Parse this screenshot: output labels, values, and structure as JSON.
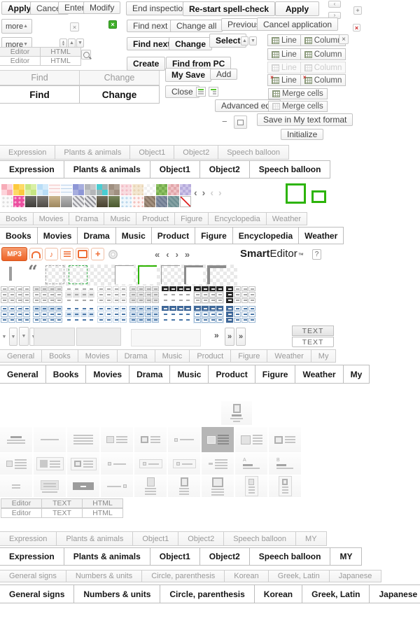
{
  "buttons": {
    "apply": "Apply",
    "cancel": "Cancel",
    "enter": "Enter",
    "modify": "Modify",
    "more": "more",
    "end_inspection": "End inspection",
    "restart_spell_check": "Re-start spell-check",
    "apply2": "Apply",
    "find_next": "Find next",
    "change_all": "Change all",
    "previous": "Previous",
    "cancel_application": "Cancel application",
    "find_next_bold": "Find next",
    "change_bold": "Change",
    "select": "Select",
    "create": "Create",
    "find_from_pc": "Find from PC",
    "my_save": "My Save",
    "add": "Add",
    "close": "Close",
    "advanced_edit": "Advanced edit",
    "merge_cells": "Merge cells",
    "merge_cells_disabled": "Merge cells",
    "save_my_text_format": "Save in My text format",
    "initialize": "Initialize",
    "line": "Line",
    "column": "Column",
    "text_upper": "TEXT",
    "minus": "−"
  },
  "tabs": {
    "editor_html": [
      "Editor",
      "HTML"
    ],
    "find_change": [
      "Find",
      "Change"
    ],
    "editor_text_html": [
      "Editor",
      "TEXT",
      "HTML"
    ],
    "groups": [
      {
        "id": "sticker",
        "items": [
          "Expression",
          "Plants & animals",
          "Object1",
          "Object2",
          "Speech balloon"
        ]
      },
      {
        "id": "theme",
        "items": [
          "Books",
          "Movies",
          "Drama",
          "Music",
          "Product",
          "Figure",
          "Encyclopedia",
          "Weather"
        ]
      },
      {
        "id": "photo",
        "items": [
          "General",
          "Books",
          "Movies",
          "Drama",
          "Music",
          "Product",
          "Figure",
          "Weather",
          "My"
        ]
      },
      {
        "id": "sticker-my",
        "items": [
          "Expression",
          "Plants & animals",
          "Object1",
          "Object2",
          "Speech balloon",
          "MY"
        ]
      },
      {
        "id": "signs",
        "items": [
          "General signs",
          "Numbers & units",
          "Circle, parenthesis",
          "Korean",
          "Greek, Latin",
          "Japanese"
        ]
      }
    ]
  },
  "brand": {
    "bold": "Smart",
    "regular": "Editor",
    "tm": "™",
    "help": "?"
  },
  "mp3": {
    "label": "MP3",
    "icons": [
      "headphone-icon",
      "music-note-icon",
      "playlist-icon",
      "radio-icon",
      "plus-icon",
      "disc-icon"
    ]
  },
  "arrows": {
    "prev": "‹",
    "next": "›",
    "first": "«",
    "last": "»",
    "up": "▲",
    "down": "▼",
    "plus": "+",
    "close": "×"
  },
  "palette": {
    "row1": [
      "quad:#f7acb8:#fdd3da",
      "quad:#fcc93f:#fdda66",
      "quad:#c6e683:#d9efa5",
      "quad:#b8ddf7:#d3eafa",
      "lines:#fdf5f5:#f3c6c6",
      "lines:#f5f9fd:#bcd2ea",
      "quad:#8e97d6:#a7aede",
      "quad:#b4b6b9:#c6c8ca",
      "quad:#49cdd2:#9fb3b4",
      "quad:#a09081:#b0a294",
      "dots:#f8dce0:#f3bcc6",
      "dots:#f3e6d0:#e8d4b4",
      "check:#f0f0f0:#ffffff",
      "check:#76ad4e:#8fc164",
      "check:#e2a6aa:#eec3c6",
      "check:#b6abdc:#cdc5e8"
    ],
    "row2": [
      "dots:#fafafa:#dedede",
      "dots:#ec4fa0:#f7b0d3",
      "photo:#4c4a45",
      "photo:#5f5b55",
      "photo:#bfa474",
      "photo:#a8a8a8",
      "diag:#e8e8ea:#9a9aa0",
      "diag:#e4e4e6:#8f8f95",
      "photo:#564f39",
      "photo:#5a6b38",
      "dots:#eff7fc:#bcd9ec",
      "dots:#fdf4f3:#f3c0bc",
      "diag:#a3907f:#8a7766",
      "diag:#8590a3:#6f7b91",
      "diag:#84a1a3:#6d8f92",
      "slash"
    ]
  },
  "border_tiles": [
    "dashed-gray",
    "dashed-green",
    "transparent",
    "corner-gray",
    "corner-green",
    "corner-gray-transparent",
    "corner-thick",
    "corner-thick-transparent"
  ],
  "table_styles": {
    "themes": [
      {
        "name": "gray",
        "line": "#c2c2c2",
        "lineL": "#dcdcdc",
        "dash": "#a8a8a8",
        "dark": "#262626",
        "light": "#e9e9e9"
      },
      {
        "name": "blue",
        "line": "#9cb8d4",
        "lineL": "#c5d8ea",
        "dash": "#4a77a8",
        "dark": "#3f6899",
        "light": "#dbe7f3"
      }
    ],
    "styles": [
      "grid",
      "grid-head",
      "rows",
      "grid-light",
      "grid-shade",
      "dark-row-plain",
      "dark-row-grid",
      "dark-col"
    ]
  },
  "layout_thumbs": {
    "single": "single",
    "rows": [
      [
        "center-lines",
        "hr",
        "lines",
        "img-row",
        "imgframe-row",
        "bullet-line",
        "img-row-selected",
        "imgbig-row",
        "imgframe2-row"
      ],
      [
        "img-row-sm",
        "imgbox-row",
        "imgframebox-row",
        "bullet-line-sm",
        "bullet-line-box",
        "bullet-line-box2",
        "dash-lines",
        "letterA",
        "letterB"
      ],
      [
        "lines2-short",
        "graybox-lines",
        "darkbox",
        "line-bullet-right",
        "portrait-col",
        "portraitframe-col",
        "portraitbig-col",
        "portraitbox-col",
        "portraitbox2-col"
      ]
    ]
  }
}
